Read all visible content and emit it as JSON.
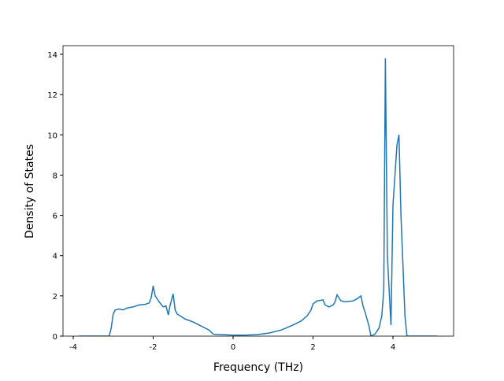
{
  "chart_data": {
    "type": "line",
    "xlabel": "Frequency (THz)",
    "ylabel": "Density of States",
    "series": [
      {
        "color": "#1f77b4",
        "x": [
          -3.85,
          -3.1,
          -3.05,
          -3.0,
          -2.95,
          -2.85,
          -2.75,
          -2.65,
          -2.5,
          -2.35,
          -2.2,
          -2.1,
          -2.05,
          -2.0,
          -1.95,
          -1.85,
          -1.75,
          -1.68,
          -1.62,
          -1.58,
          -1.5,
          -1.45,
          -1.4,
          -1.2,
          -1.0,
          -0.8,
          -0.6,
          -0.5,
          -0.3,
          0,
          0.3,
          0.6,
          0.9,
          1.2,
          1.5,
          1.7,
          1.85,
          1.95,
          2.0,
          2.1,
          2.25,
          2.3,
          2.4,
          2.5,
          2.55,
          2.6,
          2.7,
          2.8,
          3.0,
          3.1,
          3.2,
          3.25,
          3.3,
          3.4,
          3.45,
          3.55,
          3.65,
          3.72,
          3.77,
          3.81,
          3.86,
          3.95,
          4.0,
          4.1,
          4.15,
          4.2,
          4.3,
          4.35,
          5.1
        ],
        "values": [
          0,
          0,
          0.4,
          1.1,
          1.3,
          1.35,
          1.3,
          1.4,
          1.45,
          1.55,
          1.58,
          1.65,
          1.9,
          2.5,
          2.0,
          1.7,
          1.45,
          1.5,
          1.05,
          1.5,
          2.1,
          1.3,
          1.1,
          0.85,
          0.7,
          0.5,
          0.3,
          0.1,
          0.08,
          0.05,
          0.05,
          0.08,
          0.15,
          0.3,
          0.55,
          0.75,
          1.0,
          1.3,
          1.6,
          1.75,
          1.8,
          1.55,
          1.45,
          1.55,
          1.7,
          2.05,
          1.75,
          1.7,
          1.75,
          1.85,
          2.0,
          1.5,
          1.2,
          0.5,
          0,
          0.1,
          0.4,
          1.0,
          2.3,
          13.8,
          4.0,
          0.55,
          6.5,
          9.5,
          10.0,
          6.0,
          1.0,
          0,
          0
        ]
      }
    ],
    "xlim": [
      -4.256,
      5.517
    ],
    "xticks": [
      -4,
      -2,
      0,
      2,
      4
    ],
    "ylim": [
      0,
      14.43
    ],
    "yticks": [
      0,
      2,
      4,
      6,
      8,
      10,
      12,
      14
    ]
  }
}
